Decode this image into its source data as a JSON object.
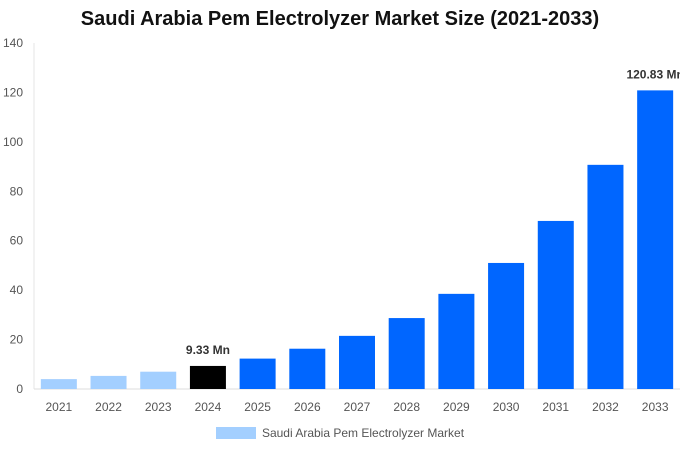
{
  "chart_data": {
    "type": "bar",
    "title": "Saudi Arabia Pem Electrolyzer Market Size (2021-2033)",
    "categories": [
      "2021",
      "2022",
      "2023",
      "2024",
      "2025",
      "2026",
      "2027",
      "2028",
      "2029",
      "2030",
      "2031",
      "2032",
      "2033"
    ],
    "series": [
      {
        "name": "Saudi Arabia Pem Electrolyzer Market",
        "values": [
          4.0,
          5.3,
          7.0,
          9.33,
          12.3,
          16.3,
          21.5,
          28.7,
          38.5,
          51.0,
          68.0,
          90.7,
          120.83
        ]
      }
    ],
    "ylim": [
      0,
      140
    ],
    "yticks": [
      0,
      20,
      40,
      60,
      80,
      100,
      120,
      140
    ],
    "data_labels": [
      {
        "category": "2024",
        "text": "9.33 Mn"
      },
      {
        "category": "2033",
        "text": "120.83 Mn"
      }
    ],
    "colors": {
      "historical": "#a3cfff",
      "current": "#000000",
      "forecast": "#0066ff"
    },
    "legend": "bottom",
    "grid": false
  }
}
